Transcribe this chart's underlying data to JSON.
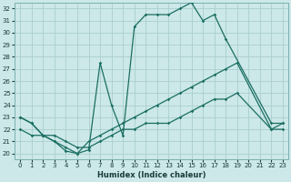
{
  "xlabel": "Humidex (Indice chaleur)",
  "bg_color": "#cce8e8",
  "grid_color": "#aacece",
  "line_color": "#1a6e62",
  "xlim": [
    -0.5,
    23.5
  ],
  "ylim": [
    19.5,
    32.5
  ],
  "xticks": [
    0,
    1,
    2,
    3,
    4,
    5,
    6,
    7,
    8,
    9,
    10,
    11,
    12,
    13,
    14,
    15,
    16,
    17,
    18,
    19,
    20,
    21,
    22,
    23
  ],
  "yticks": [
    20,
    21,
    22,
    23,
    24,
    25,
    26,
    27,
    28,
    29,
    30,
    31,
    32
  ],
  "curves": [
    {
      "x": [
        0,
        1,
        2,
        3,
        4,
        5,
        6,
        7,
        8,
        9,
        10,
        11,
        12,
        13,
        14,
        15,
        16,
        17,
        18,
        22,
        23
      ],
      "y": [
        23.0,
        22.5,
        21.5,
        21.0,
        20.2,
        20.0,
        20.3,
        27.5,
        24.0,
        21.5,
        30.5,
        31.5,
        31.5,
        31.5,
        32.0,
        32.5,
        31.0,
        31.5,
        29.5,
        22.5,
        22.5
      ],
      "ls": "-",
      "lw": 0.9
    },
    {
      "x": [
        0,
        1,
        2,
        3,
        4,
        5,
        6,
        7,
        8,
        9,
        10,
        11,
        12,
        13,
        14,
        15,
        16,
        17,
        18,
        19,
        22,
        23
      ],
      "y": [
        23.0,
        22.5,
        21.5,
        21.0,
        20.5,
        20.0,
        21.0,
        21.5,
        22.0,
        22.5,
        23.0,
        23.5,
        24.0,
        24.5,
        25.0,
        25.5,
        26.0,
        26.5,
        27.0,
        27.5,
        22.0,
        22.5
      ],
      "ls": "-",
      "lw": 0.9
    },
    {
      "x": [
        0,
        1,
        2,
        3,
        4,
        5,
        6,
        7,
        8,
        9,
        10,
        11,
        12,
        13,
        14,
        15,
        16,
        17,
        18,
        19,
        22,
        23
      ],
      "y": [
        22.0,
        21.5,
        21.5,
        21.5,
        21.0,
        20.5,
        20.5,
        21.0,
        21.5,
        22.0,
        22.0,
        22.5,
        22.5,
        22.5,
        23.0,
        23.5,
        24.0,
        24.5,
        24.5,
        25.0,
        22.0,
        22.0
      ],
      "ls": "-",
      "lw": 0.9
    }
  ]
}
